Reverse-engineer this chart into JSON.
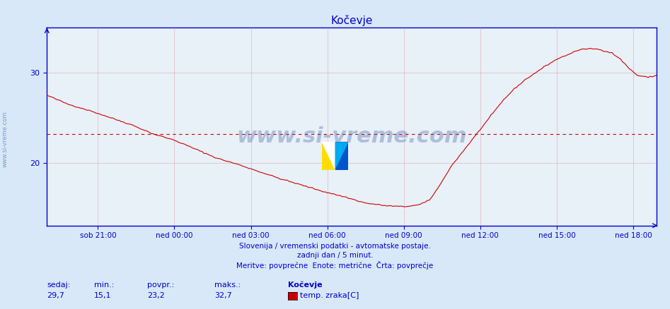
{
  "title": "Kočevje",
  "title_color": "#0000cc",
  "background_color": "#d8e8f8",
  "plot_bg_color": "#e8f0f8",
  "line_color": "#cc0000",
  "avg_line_color": "#cc0000",
  "avg_value": 23.2,
  "min_value": 15.1,
  "max_value": 32.7,
  "current_value": 29.7,
  "ylim": [
    13,
    35
  ],
  "yticks": [
    20,
    30
  ],
  "grid_color": "#cc8888",
  "grid_alpha": 0.5,
  "xlabel_color": "#0000cc",
  "ylabel_color": "#0000cc",
  "xtick_labels": [
    "sob 21:00",
    "ned 00:00",
    "ned 03:00",
    "ned 06:00",
    "ned 09:00",
    "ned 12:00",
    "ned 15:00",
    "ned 18:00"
  ],
  "watermark_text": "www.si-vreme.com",
  "watermark_color": "#4466aa",
  "watermark_alpha": 0.35,
  "footer_line1": "Slovenija / vremenski podatki - avtomatske postaje.",
  "footer_line2": "zadnji dan / 5 minut.",
  "footer_line3": "Meritve: povprečne  Enote: metrične  Črta: povprečje",
  "footer_color": "#0000cc",
  "legend_title": "Kočevje",
  "legend_label": "temp. zraka[C]",
  "legend_color": "#cc0000",
  "stats_labels": [
    "sedaj:",
    "min.:",
    "povpr.:",
    "maks.:"
  ],
  "stats_values": [
    "29,7",
    "15,1",
    "23,2",
    "32,7"
  ],
  "stats_color": "#0000cc",
  "sidebar_text": "www.si-vreme.com",
  "sidebar_color": "#4466aa"
}
